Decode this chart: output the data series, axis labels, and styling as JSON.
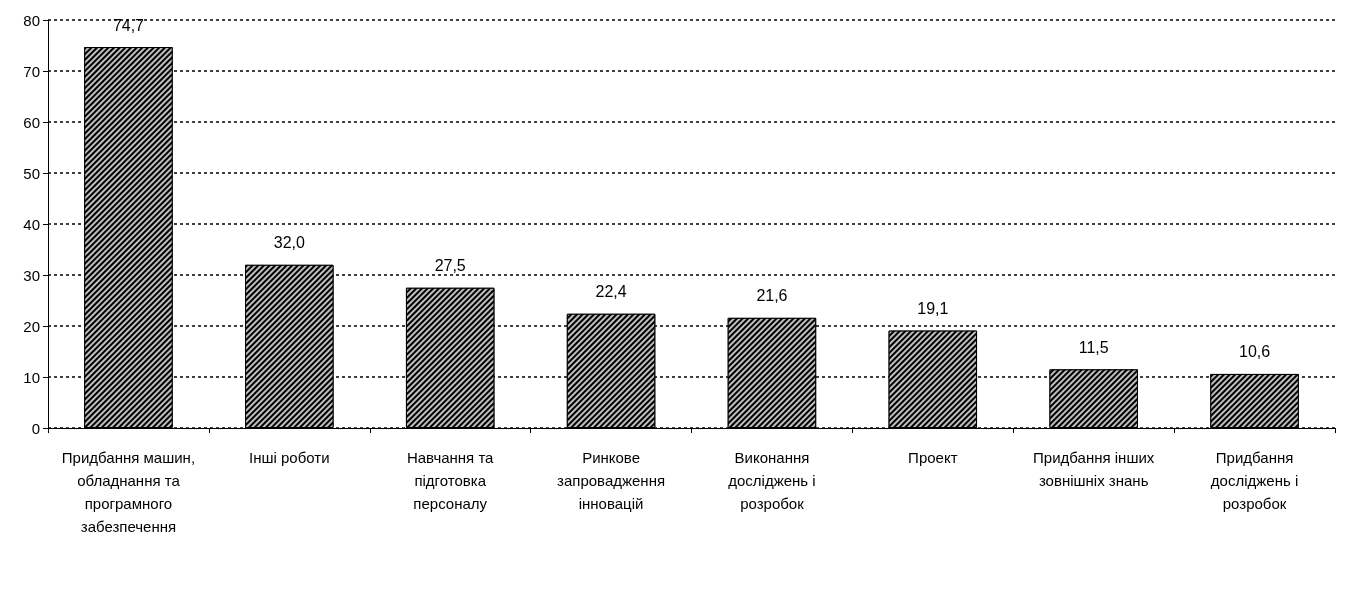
{
  "chart_data": {
    "type": "bar",
    "categories": [
      "Придбання машин, обладнання та програмного забезпечення",
      "Інші роботи",
      "Навчання та підготовка персоналу",
      "Ринкове запровадження інновацій",
      "Виконання досліджень і розробок",
      "Проект",
      "Придбання інших зовнішніх знань",
      "Придбання досліджень і розробок"
    ],
    "values": [
      74.7,
      32.0,
      27.5,
      22.4,
      21.6,
      19.1,
      11.5,
      10.6
    ],
    "value_labels": [
      "74,7",
      "32,0",
      "27,5",
      "22,4",
      "21,6",
      "19,1",
      "11,5",
      "10,6"
    ],
    "color": "#000000",
    "ylim": [
      0,
      80
    ],
    "yticks": [
      0,
      10,
      20,
      30,
      40,
      50,
      60,
      70,
      80
    ],
    "grid": "y"
  }
}
